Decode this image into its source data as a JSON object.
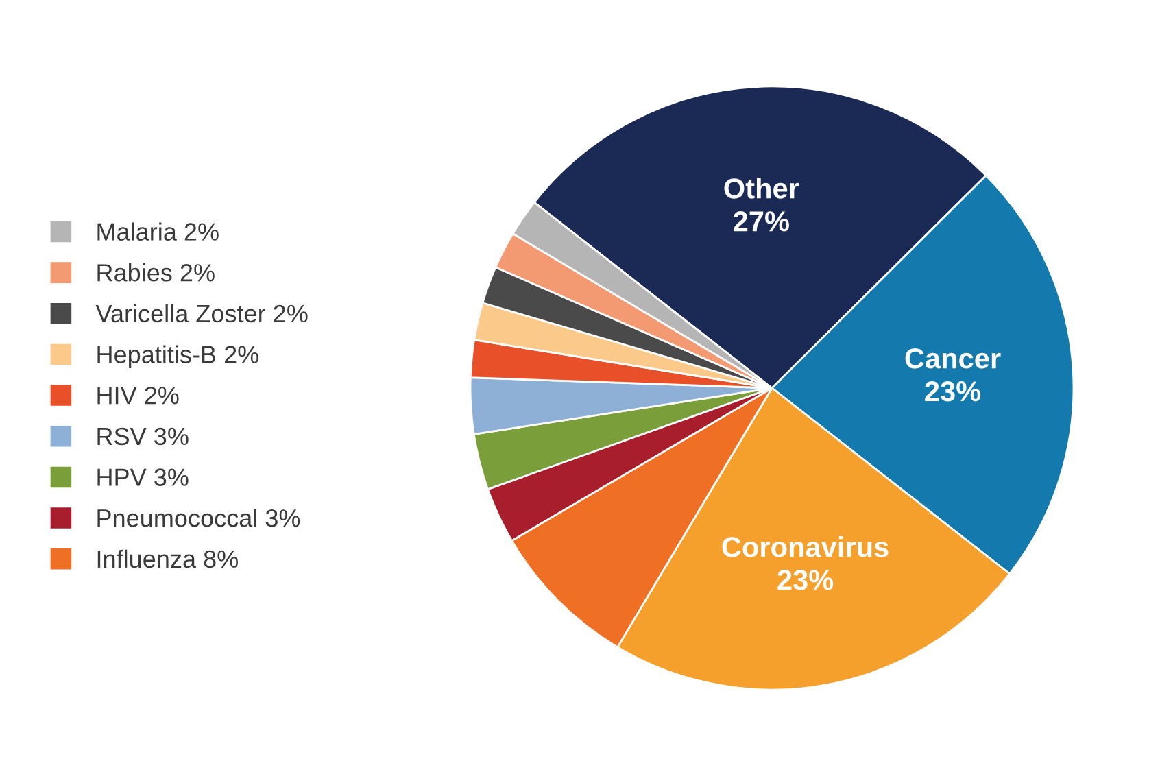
{
  "chart_data": {
    "type": "pie",
    "categories": [
      "Other",
      "Cancer",
      "Coronavirus",
      "Influenza",
      "Pneumococcal",
      "HPV",
      "RSV",
      "HIV",
      "Hepatitis-B",
      "Varicella Zoster",
      "Rabies",
      "Malaria"
    ],
    "values": [
      27,
      23,
      23,
      8,
      3,
      3,
      3,
      2,
      2,
      2,
      2,
      2
    ],
    "value_labels": [
      "27%",
      "23%",
      "23%",
      "8%",
      "3%",
      "3%",
      "3%",
      "2%",
      "2%",
      "2%",
      "2%",
      "2%"
    ],
    "colors": [
      "#1b2a55",
      "#1479ad",
      "#f5a02c",
      "#ef6f24",
      "#a81e2d",
      "#7a9e3a",
      "#8fb0d6",
      "#e8502a",
      "#fbc98a",
      "#4a4a4a",
      "#f39a72",
      "#b5b5b5"
    ],
    "legend": "left"
  }
}
